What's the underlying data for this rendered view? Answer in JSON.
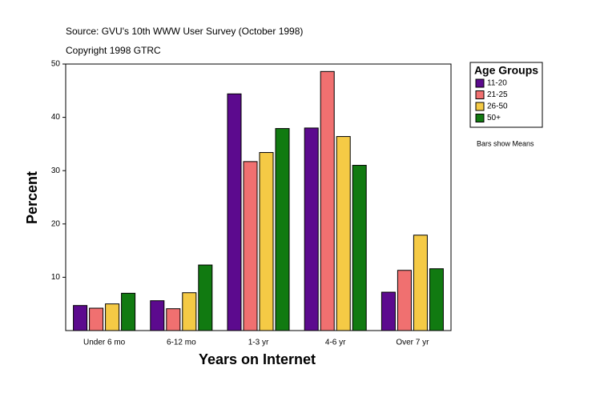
{
  "chart_data": {
    "type": "bar",
    "subtitle": "Source: GVU's 10th WWW User Survey (October 1998)",
    "note": "Copyright 1998 GTRC",
    "x_label": "Years on Internet",
    "y_label": "Percent",
    "legend_title": "Age Groups",
    "annotation": "Bars show Means",
    "categories": [
      "Under 6 mo",
      "6-12 mo",
      "1-3 yr",
      "4-6 yr",
      "Over 7 yr"
    ],
    "series": [
      {
        "name": "11-20",
        "color": "#5c0a8e",
        "values": [
          4.7,
          5.6,
          44.4,
          38.0,
          7.2
        ]
      },
      {
        "name": "21-25",
        "color": "#f07070",
        "values": [
          4.2,
          4.1,
          31.7,
          48.6,
          11.3
        ]
      },
      {
        "name": "26-50",
        "color": "#f5ca45",
        "values": [
          5.0,
          7.1,
          33.4,
          36.4,
          17.9
        ]
      },
      {
        "name": "50+",
        "color": "#117a11",
        "values": [
          7.0,
          12.3,
          37.9,
          31.0,
          11.6
        ]
      }
    ],
    "ylim": [
      0,
      50
    ],
    "yticks": [
      10,
      20,
      30,
      40,
      50
    ],
    "legend": "right"
  }
}
